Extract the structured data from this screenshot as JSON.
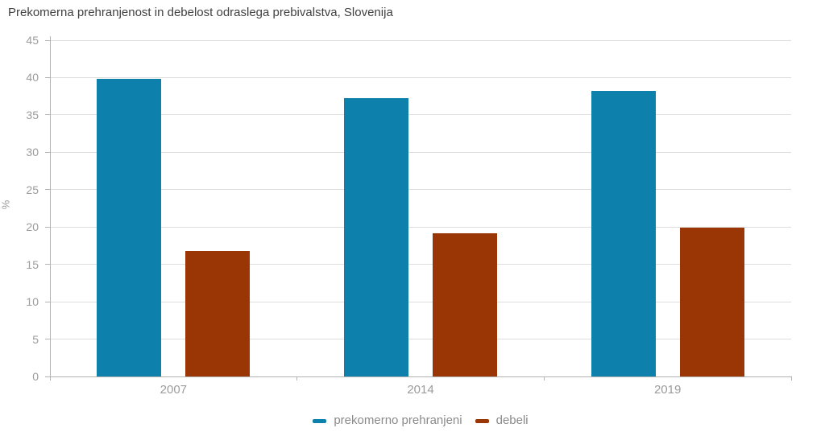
{
  "chart_data": {
    "type": "bar",
    "title": "Prekomerna prehranjenost in debelost odraslega prebivalstva, Slovenija",
    "xlabel": "",
    "ylabel": "%",
    "categories": [
      "2007",
      "2014",
      "2019"
    ],
    "series": [
      {
        "name": "prekomerno prehranjeni",
        "color": "#0e80ac",
        "values": [
          39.8,
          37.3,
          38.2
        ]
      },
      {
        "name": "debeli",
        "color": "#9a3606",
        "values": [
          16.8,
          19.2,
          19.9
        ]
      }
    ],
    "ylim": [
      0,
      45
    ],
    "yticks": [
      0,
      5,
      10,
      15,
      20,
      25,
      30,
      35,
      40,
      45
    ],
    "grid": "horizontal",
    "legend_position": "bottom-center"
  },
  "colors": {
    "title_text": "#404040",
    "axis_text": "#9b9b9b",
    "legend_text": "#8a8a8a",
    "gridline": "#dedede",
    "axis_line": "#b3b3b3",
    "series_overweight": "#0e80ac",
    "series_obese": "#9a3606",
    "background": "#ffffff"
  }
}
